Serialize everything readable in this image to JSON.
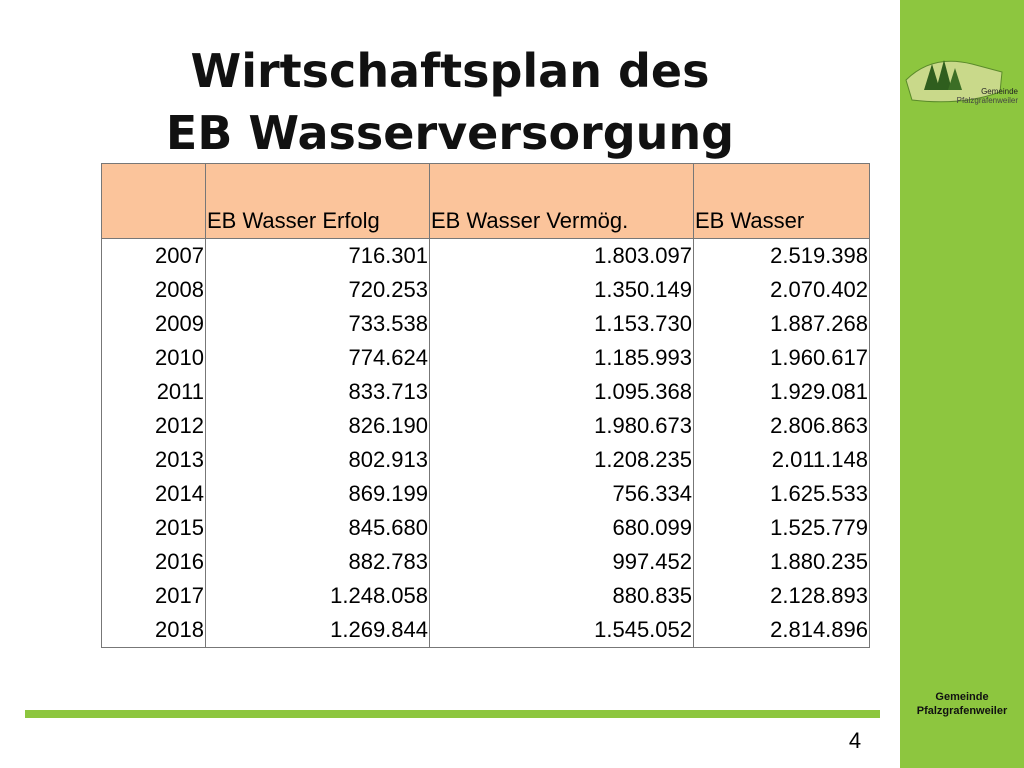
{
  "header": {
    "title_line1": "Wirtschaftsplan des",
    "title_line2": "EB Wasserversorgung"
  },
  "table": {
    "headers": [
      "EB Wasser Erfolg",
      "EB Wasser Vermög.",
      "EB Wasser"
    ],
    "rows": [
      [
        "2007",
        "716.301",
        "1.803.097",
        "2.519.398"
      ],
      [
        "2008",
        "720.253",
        "1.350.149",
        "2.070.402"
      ],
      [
        "2009",
        "733.538",
        "1.153.730",
        "1.887.268"
      ],
      [
        "2010",
        "774.624",
        "1.185.993",
        "1.960.617"
      ],
      [
        "2011",
        "833.713",
        "1.095.368",
        "1.929.081"
      ],
      [
        "2012",
        "826.190",
        "1.980.673",
        "2.806.863"
      ],
      [
        "2013",
        "802.913",
        "1.208.235",
        "2.011.148"
      ],
      [
        "2014",
        "869.199",
        "756.334",
        "1.625.533"
      ],
      [
        "2015",
        "845.680",
        "680.099",
        "1.525.779"
      ],
      [
        "2016",
        "882.783",
        "997.452",
        "1.880.235"
      ],
      [
        "2017",
        "1.248.058",
        "880.835",
        "2.128.893"
      ],
      [
        "2018",
        "1.269.844",
        "1.545.052",
        "2.814.896"
      ]
    ]
  },
  "logo": {
    "line1": "Gemeinde",
    "line2": "Pfalzgrafenweiler"
  },
  "sidebar": {
    "line1": "Gemeinde",
    "line2": "Pfalzgrafenweiler"
  },
  "footer": {
    "page_number": "4"
  }
}
